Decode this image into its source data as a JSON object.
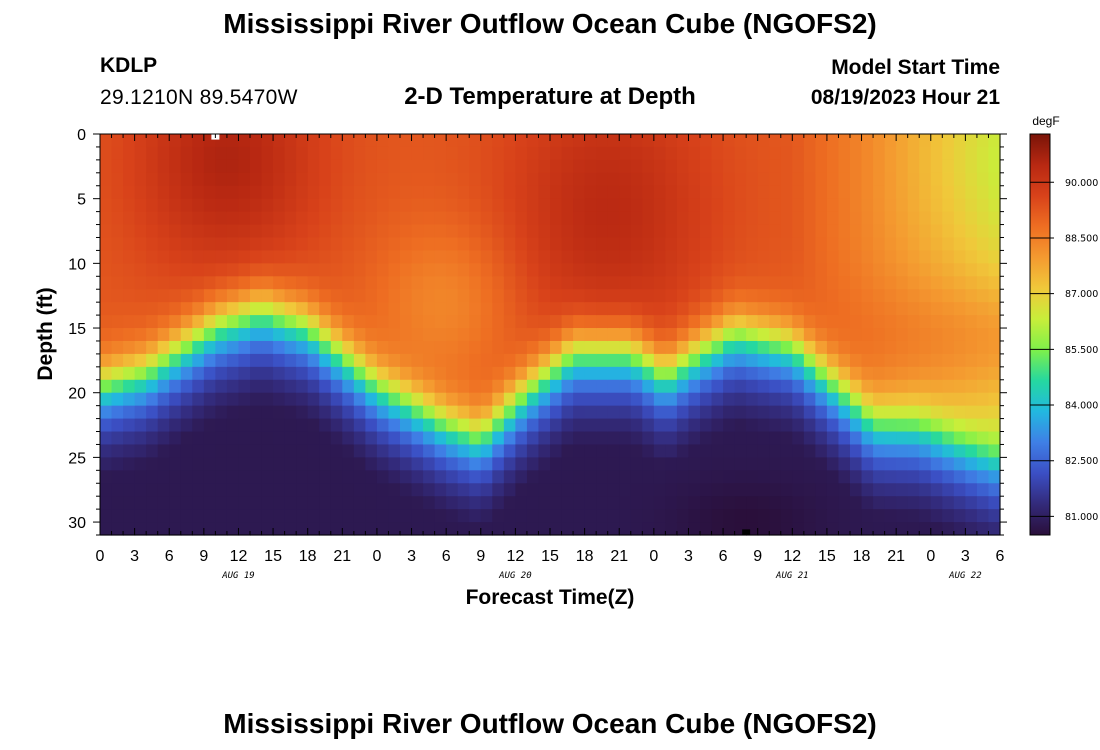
{
  "header": {
    "title": "Mississippi River Outflow Ocean Cube (NGOFS2)",
    "station_id": "KDLP",
    "station_coords": "29.1210N  89.5470W",
    "subtitle": "2-D Temperature at Depth",
    "model_label": "Model Start Time",
    "model_time": "08/19/2023 Hour 21"
  },
  "footer": {
    "title": "Mississippi River Outflow Ocean Cube (NGOFS2)"
  },
  "chart_data": {
    "type": "heatmap",
    "title": "2-D Temperature at Depth",
    "xlabel": "Forecast Time(Z)",
    "ylabel": "Depth (ft)",
    "x_range_hours": [
      0,
      78
    ],
    "y_range_ft": [
      0,
      31
    ],
    "x_ticks": [
      "0",
      "3",
      "6",
      "9",
      "12",
      "15",
      "18",
      "21",
      "0",
      "3",
      "6",
      "9",
      "12",
      "15",
      "18",
      "21",
      "0",
      "3",
      "6",
      "9",
      "12",
      "15",
      "18",
      "21",
      "0",
      "3",
      "6"
    ],
    "y_ticks": [
      0,
      5,
      10,
      15,
      20,
      25,
      30
    ],
    "date_labels": [
      {
        "label": "AUG 19",
        "hour": 12
      },
      {
        "label": "AUG 20",
        "hour": 36
      },
      {
        "label": "AUG 21",
        "hour": 60
      },
      {
        "label": "AUG 22",
        "hour": 75
      }
    ],
    "colorbar": {
      "unit": "degF",
      "min": 80.5,
      "max": 91.3,
      "ticks": [
        "81.000",
        "82.500",
        "84.000",
        "85.500",
        "87.000",
        "88.500",
        "90.000"
      ],
      "colors": [
        "#2a0f3a",
        "#332a7a",
        "#3b4fc4",
        "#3f7fe6",
        "#22b8e0",
        "#25d8a0",
        "#7ef04a",
        "#c8ee3a",
        "#f0c83a",
        "#f49a30",
        "#ee6e22",
        "#d8421a",
        "#b82812",
        "#7a1408"
      ]
    },
    "thermocline_depth_ft": [
      {
        "hour": 0,
        "depth": 19.5
      },
      {
        "hour": 4,
        "depth": 18.5
      },
      {
        "hour": 10,
        "depth": 15.0
      },
      {
        "hour": 14,
        "depth": 13.8
      },
      {
        "hour": 18,
        "depth": 15.0
      },
      {
        "hour": 24,
        "depth": 19.5
      },
      {
        "hour": 30,
        "depth": 22.5
      },
      {
        "hour": 33,
        "depth": 23.5
      },
      {
        "hour": 37,
        "depth": 20.0
      },
      {
        "hour": 41,
        "depth": 17.0
      },
      {
        "hour": 46,
        "depth": 17.0
      },
      {
        "hour": 49,
        "depth": 18.8
      },
      {
        "hour": 52,
        "depth": 17.0
      },
      {
        "hour": 55,
        "depth": 15.5
      },
      {
        "hour": 60,
        "depth": 16.5
      },
      {
        "hour": 64,
        "depth": 19.8
      },
      {
        "hour": 67,
        "depth": 22.5
      },
      {
        "hour": 71,
        "depth": 22.8
      },
      {
        "hour": 74,
        "depth": 24.0
      },
      {
        "hour": 78,
        "depth": 25.5
      }
    ],
    "warm_cores": [
      {
        "hour": 10,
        "depth": 1.5,
        "temp_degF": 91.2
      },
      {
        "hour": 44,
        "depth": 4.0,
        "temp_degF": 90.8
      }
    ],
    "markers": [
      {
        "hour": 10,
        "depth": 0.2,
        "kind": "surface"
      },
      {
        "hour": 56,
        "depth": 30.8,
        "kind": "bottom"
      }
    ]
  }
}
